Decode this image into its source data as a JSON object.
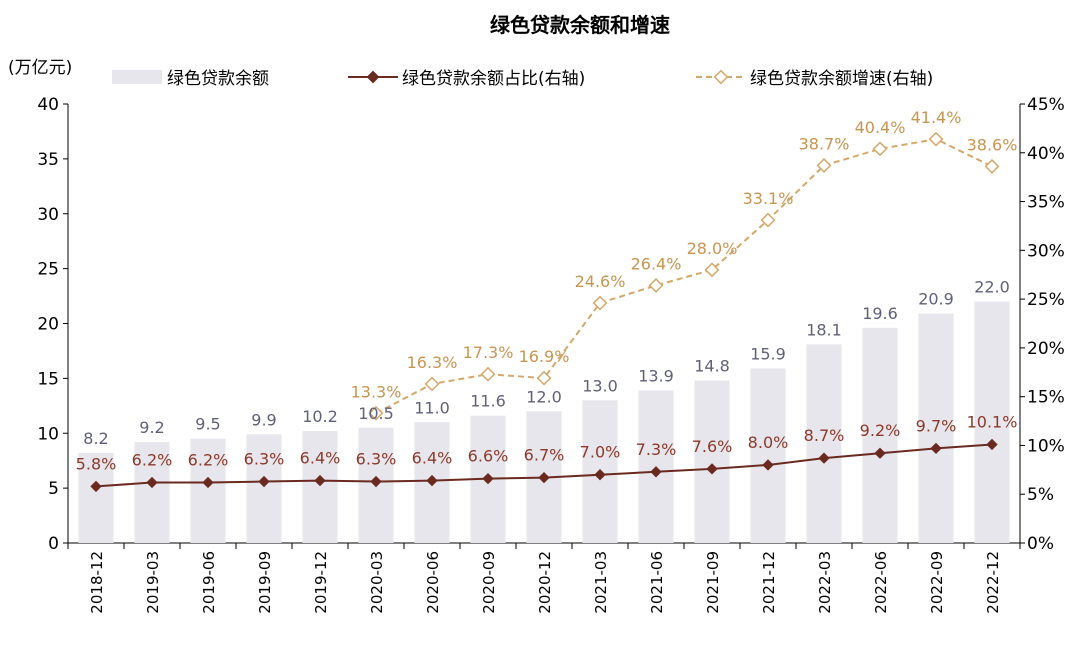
{
  "chart_data": {
    "type": "bar",
    "title": "绿色贷款余额和增速",
    "ylabel": "(万亿元)",
    "ylim": [
      0,
      40
    ],
    "y2lim": [
      0,
      0.45
    ],
    "yticks": [
      "0",
      "5",
      "10",
      "15",
      "20",
      "25",
      "30",
      "35",
      "40"
    ],
    "y2ticks": [
      "0%",
      "5%",
      "10%",
      "15%",
      "20%",
      "25%",
      "30%",
      "35%",
      "40%",
      "45%"
    ],
    "categories": [
      "2018-12",
      "2019-03",
      "2019-06",
      "2019-09",
      "2019-12",
      "2020-03",
      "2020-06",
      "2020-09",
      "2020-12",
      "2021-03",
      "2021-06",
      "2021-09",
      "2021-12",
      "2022-03",
      "2022-06",
      "2022-09",
      "2022-12"
    ],
    "legend_position": "top",
    "series": [
      {
        "name": "绿色贷款余额",
        "kind": "bar",
        "axis": "left",
        "color": "#e6e6ec",
        "label_color": "#60607a",
        "values": [
          8.2,
          9.2,
          9.5,
          9.9,
          10.2,
          10.5,
          11.0,
          11.6,
          12.0,
          13.0,
          13.9,
          14.8,
          15.9,
          18.1,
          19.6,
          20.9,
          22.0
        ],
        "labels": [
          "8.2",
          "9.2",
          "9.5",
          "9.9",
          "10.2",
          "10.5",
          "11.0",
          "11.6",
          "12.0",
          "13.0",
          "13.9",
          "14.8",
          "15.9",
          "18.1",
          "19.6",
          "20.9",
          "22.0"
        ]
      },
      {
        "name": "绿色贷款余额占比(右轴)",
        "kind": "line",
        "axis": "right",
        "color": "#6b2a1f",
        "label_color": "#8b3a2a",
        "values": [
          5.8,
          6.2,
          6.2,
          6.3,
          6.4,
          6.3,
          6.4,
          6.6,
          6.7,
          7.0,
          7.3,
          7.6,
          8.0,
          8.7,
          9.2,
          9.7,
          10.1
        ],
        "labels": [
          "5.8%",
          "6.2%",
          "6.2%",
          "6.3%",
          "6.4%",
          "6.3%",
          "6.4%",
          "6.6%",
          "6.7%",
          "7.0%",
          "7.3%",
          "7.6%",
          "8.0%",
          "8.7%",
          "9.2%",
          "9.7%",
          "10.1%"
        ]
      },
      {
        "name": "绿色贷款余额增速(右轴)",
        "kind": "line-dashed",
        "axis": "right",
        "color": "#d4a86a",
        "label_color": "#c89550",
        "values": [
          null,
          null,
          null,
          null,
          null,
          13.3,
          16.3,
          17.3,
          16.9,
          24.6,
          26.4,
          28.0,
          33.1,
          38.7,
          40.4,
          41.4,
          38.6
        ],
        "labels": [
          "",
          "",
          "",
          "",
          "",
          "13.3%",
          "16.3%",
          "17.3%",
          "16.9%",
          "24.6%",
          "26.4%",
          "28.0%",
          "33.1%",
          "38.7%",
          "40.4%",
          "41.4%",
          "38.6%"
        ]
      }
    ]
  }
}
